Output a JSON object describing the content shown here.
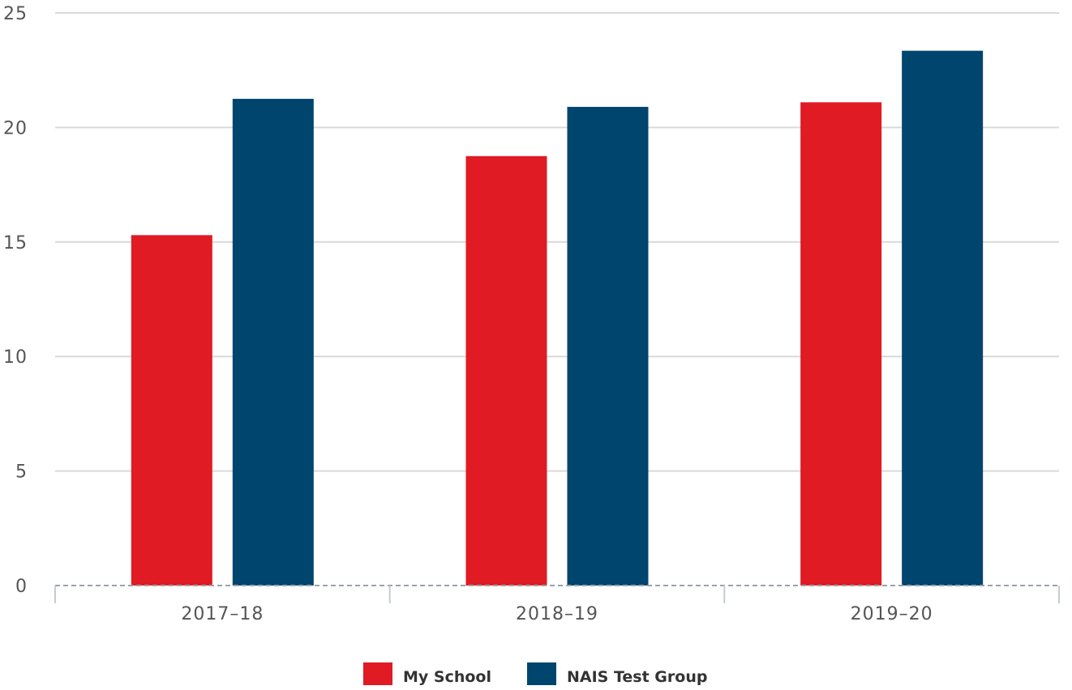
{
  "chart_data": {
    "type": "bar",
    "categories": [
      "2017–18",
      "2018–19",
      "2019–20"
    ],
    "series": [
      {
        "name": "My School",
        "color": "#e01b24",
        "values": [
          15.3,
          18.75,
          21.1
        ]
      },
      {
        "name": "NAIS Test Group",
        "color": "#00456e",
        "values": [
          21.25,
          20.9,
          23.35
        ]
      }
    ],
    "title": "",
    "xlabel": "",
    "ylabel": "",
    "ylim": [
      0,
      25
    ],
    "yticks": [
      0,
      5,
      10,
      15,
      20,
      25
    ],
    "grid": true,
    "legend": "bottom-center"
  }
}
